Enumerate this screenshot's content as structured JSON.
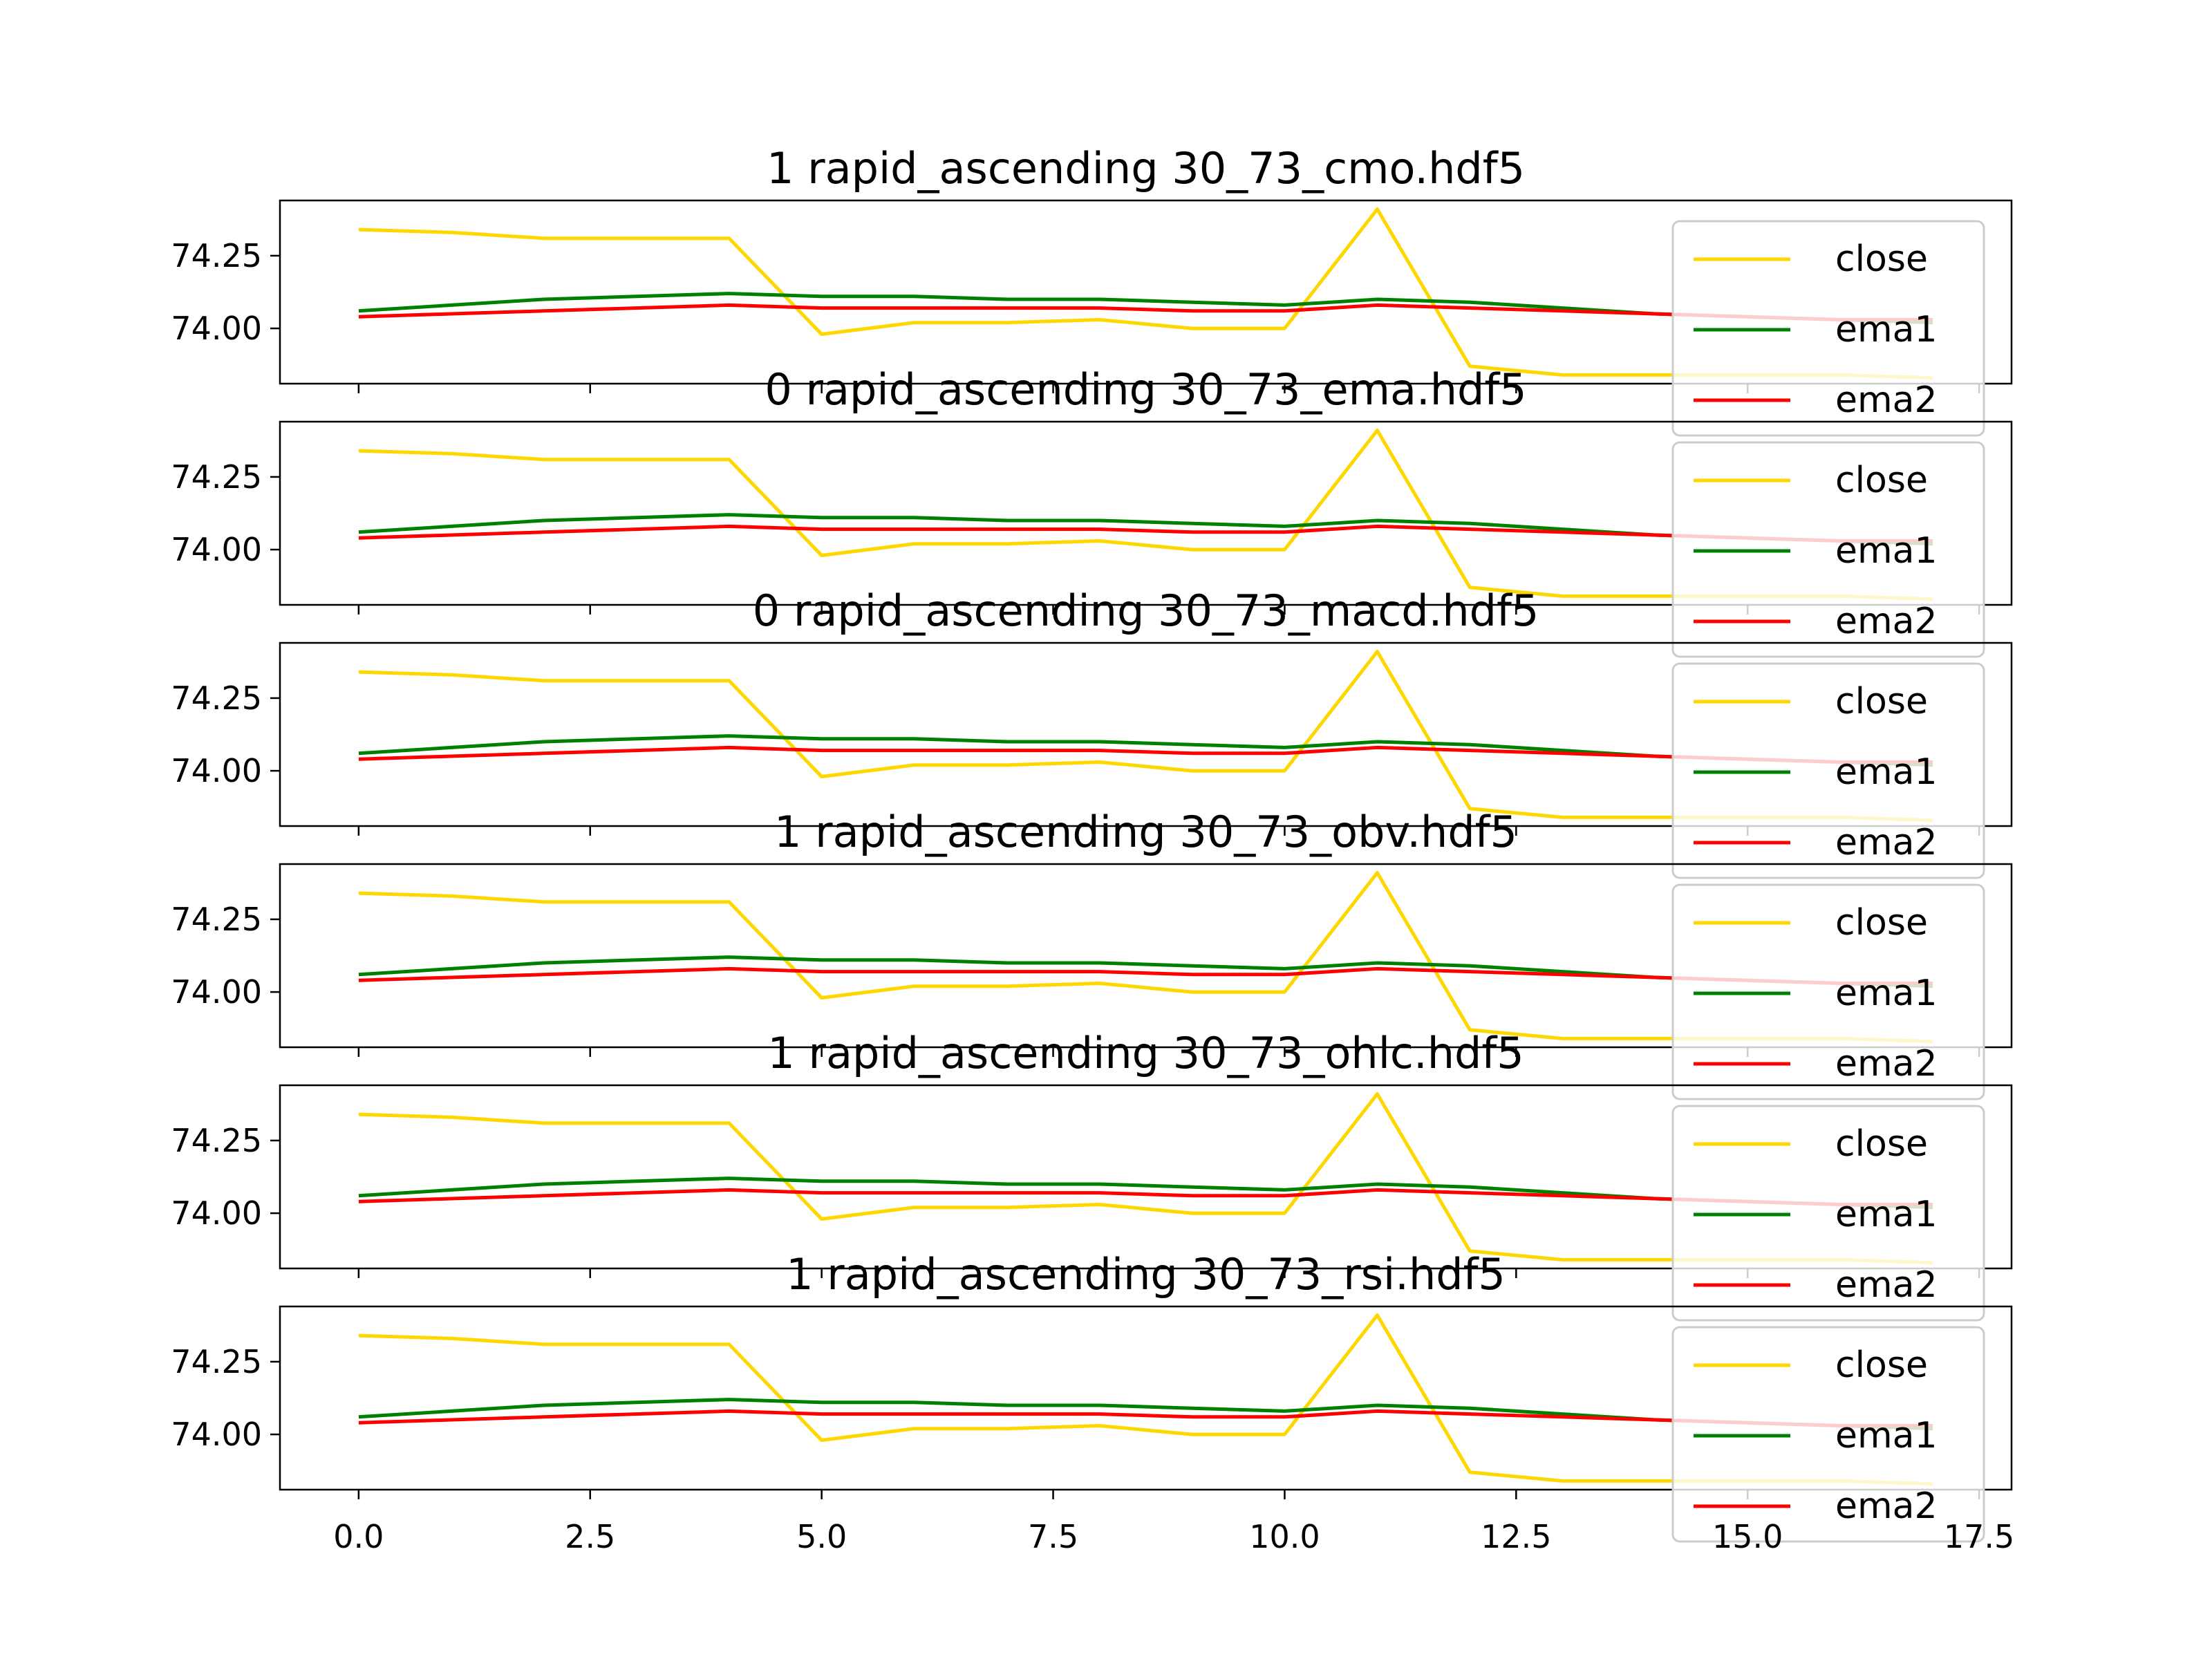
{
  "figure": {
    "background": "#ffffff"
  },
  "series_styles": [
    {
      "name": "close",
      "color": "#ffd700"
    },
    {
      "name": "ema1",
      "color": "#008000"
    },
    {
      "name": "ema2",
      "color": "#ff0000"
    }
  ],
  "chart_data": [
    {
      "type": "line",
      "title": "1 rapid_ascending 30_73_cmo.hdf5",
      "x": [
        0,
        1,
        2,
        3,
        4,
        5,
        6,
        7,
        8,
        9,
        10,
        11,
        12,
        13,
        14,
        15,
        16,
        17
      ],
      "series": [
        {
          "name": "close",
          "values": [
            74.34,
            74.33,
            74.31,
            74.31,
            74.31,
            73.98,
            74.02,
            74.02,
            74.03,
            74.0,
            74.0,
            74.41,
            73.87,
            73.84,
            73.84,
            73.84,
            73.84,
            73.83
          ]
        },
        {
          "name": "ema1",
          "values": [
            74.06,
            74.08,
            74.1,
            74.11,
            74.12,
            74.11,
            74.11,
            74.1,
            74.1,
            74.09,
            74.08,
            74.1,
            74.09,
            74.07,
            74.05,
            74.04,
            74.03,
            74.02
          ]
        },
        {
          "name": "ema2",
          "values": [
            74.04,
            74.05,
            74.06,
            74.07,
            74.08,
            74.07,
            74.07,
            74.07,
            74.07,
            74.06,
            74.06,
            74.08,
            74.07,
            74.06,
            74.05,
            74.04,
            74.03,
            74.03
          ]
        }
      ],
      "yticks": [
        "74.00",
        "74.25"
      ],
      "ylim": [
        73.81,
        74.44
      ],
      "xlim": [
        -0.85,
        17.85
      ],
      "legend": "upper right"
    },
    {
      "type": "line",
      "title": "0 rapid_ascending 30_73_ema.hdf5",
      "x": [
        0,
        1,
        2,
        3,
        4,
        5,
        6,
        7,
        8,
        9,
        10,
        11,
        12,
        13,
        14,
        15,
        16,
        17
      ],
      "series": [
        {
          "name": "close",
          "values": [
            74.34,
            74.33,
            74.31,
            74.31,
            74.31,
            73.98,
            74.02,
            74.02,
            74.03,
            74.0,
            74.0,
            74.41,
            73.87,
            73.84,
            73.84,
            73.84,
            73.84,
            73.83
          ]
        },
        {
          "name": "ema1",
          "values": [
            74.06,
            74.08,
            74.1,
            74.11,
            74.12,
            74.11,
            74.11,
            74.1,
            74.1,
            74.09,
            74.08,
            74.1,
            74.09,
            74.07,
            74.05,
            74.04,
            74.03,
            74.02
          ]
        },
        {
          "name": "ema2",
          "values": [
            74.04,
            74.05,
            74.06,
            74.07,
            74.08,
            74.07,
            74.07,
            74.07,
            74.07,
            74.06,
            74.06,
            74.08,
            74.07,
            74.06,
            74.05,
            74.04,
            74.03,
            74.03
          ]
        }
      ],
      "yticks": [
        "74.00",
        "74.25"
      ],
      "ylim": [
        73.81,
        74.44
      ],
      "xlim": [
        -0.85,
        17.85
      ],
      "legend": "upper right"
    },
    {
      "type": "line",
      "title": "0 rapid_ascending 30_73_macd.hdf5",
      "x": [
        0,
        1,
        2,
        3,
        4,
        5,
        6,
        7,
        8,
        9,
        10,
        11,
        12,
        13,
        14,
        15,
        16,
        17
      ],
      "series": [
        {
          "name": "close",
          "values": [
            74.34,
            74.33,
            74.31,
            74.31,
            74.31,
            73.98,
            74.02,
            74.02,
            74.03,
            74.0,
            74.0,
            74.41,
            73.87,
            73.84,
            73.84,
            73.84,
            73.84,
            73.83
          ]
        },
        {
          "name": "ema1",
          "values": [
            74.06,
            74.08,
            74.1,
            74.11,
            74.12,
            74.11,
            74.11,
            74.1,
            74.1,
            74.09,
            74.08,
            74.1,
            74.09,
            74.07,
            74.05,
            74.04,
            74.03,
            74.02
          ]
        },
        {
          "name": "ema2",
          "values": [
            74.04,
            74.05,
            74.06,
            74.07,
            74.08,
            74.07,
            74.07,
            74.07,
            74.07,
            74.06,
            74.06,
            74.08,
            74.07,
            74.06,
            74.05,
            74.04,
            74.03,
            74.03
          ]
        }
      ],
      "yticks": [
        "74.00",
        "74.25"
      ],
      "ylim": [
        73.81,
        74.44
      ],
      "xlim": [
        -0.85,
        17.85
      ],
      "legend": "upper right"
    },
    {
      "type": "line",
      "title": "1 rapid_ascending 30_73_obv.hdf5",
      "x": [
        0,
        1,
        2,
        3,
        4,
        5,
        6,
        7,
        8,
        9,
        10,
        11,
        12,
        13,
        14,
        15,
        16,
        17
      ],
      "series": [
        {
          "name": "close",
          "values": [
            74.34,
            74.33,
            74.31,
            74.31,
            74.31,
            73.98,
            74.02,
            74.02,
            74.03,
            74.0,
            74.0,
            74.41,
            73.87,
            73.84,
            73.84,
            73.84,
            73.84,
            73.83
          ]
        },
        {
          "name": "ema1",
          "values": [
            74.06,
            74.08,
            74.1,
            74.11,
            74.12,
            74.11,
            74.11,
            74.1,
            74.1,
            74.09,
            74.08,
            74.1,
            74.09,
            74.07,
            74.05,
            74.04,
            74.03,
            74.02
          ]
        },
        {
          "name": "ema2",
          "values": [
            74.04,
            74.05,
            74.06,
            74.07,
            74.08,
            74.07,
            74.07,
            74.07,
            74.07,
            74.06,
            74.06,
            74.08,
            74.07,
            74.06,
            74.05,
            74.04,
            74.03,
            74.03
          ]
        }
      ],
      "yticks": [
        "74.00",
        "74.25"
      ],
      "ylim": [
        73.81,
        74.44
      ],
      "xlim": [
        -0.85,
        17.85
      ],
      "legend": "upper right"
    },
    {
      "type": "line",
      "title": "1 rapid_ascending 30_73_ohlc.hdf5",
      "x": [
        0,
        1,
        2,
        3,
        4,
        5,
        6,
        7,
        8,
        9,
        10,
        11,
        12,
        13,
        14,
        15,
        16,
        17
      ],
      "series": [
        {
          "name": "close",
          "values": [
            74.34,
            74.33,
            74.31,
            74.31,
            74.31,
            73.98,
            74.02,
            74.02,
            74.03,
            74.0,
            74.0,
            74.41,
            73.87,
            73.84,
            73.84,
            73.84,
            73.84,
            73.83
          ]
        },
        {
          "name": "ema1",
          "values": [
            74.06,
            74.08,
            74.1,
            74.11,
            74.12,
            74.11,
            74.11,
            74.1,
            74.1,
            74.09,
            74.08,
            74.1,
            74.09,
            74.07,
            74.05,
            74.04,
            74.03,
            74.02
          ]
        },
        {
          "name": "ema2",
          "values": [
            74.04,
            74.05,
            74.06,
            74.07,
            74.08,
            74.07,
            74.07,
            74.07,
            74.07,
            74.06,
            74.06,
            74.08,
            74.07,
            74.06,
            74.05,
            74.04,
            74.03,
            74.03
          ]
        }
      ],
      "yticks": [
        "74.00",
        "74.25"
      ],
      "ylim": [
        73.81,
        74.44
      ],
      "xlim": [
        -0.85,
        17.85
      ],
      "legend": "upper right"
    },
    {
      "type": "line",
      "title": "1 rapid_ascending 30_73_rsi.hdf5",
      "x": [
        0,
        1,
        2,
        3,
        4,
        5,
        6,
        7,
        8,
        9,
        10,
        11,
        12,
        13,
        14,
        15,
        16,
        17
      ],
      "series": [
        {
          "name": "close",
          "values": [
            74.34,
            74.33,
            74.31,
            74.31,
            74.31,
            73.98,
            74.02,
            74.02,
            74.03,
            74.0,
            74.0,
            74.41,
            73.87,
            73.84,
            73.84,
            73.84,
            73.84,
            73.83
          ]
        },
        {
          "name": "ema1",
          "values": [
            74.06,
            74.08,
            74.1,
            74.11,
            74.12,
            74.11,
            74.11,
            74.1,
            74.1,
            74.09,
            74.08,
            74.1,
            74.09,
            74.07,
            74.05,
            74.04,
            74.03,
            74.02
          ]
        },
        {
          "name": "ema2",
          "values": [
            74.04,
            74.05,
            74.06,
            74.07,
            74.08,
            74.07,
            74.07,
            74.07,
            74.07,
            74.06,
            74.06,
            74.08,
            74.07,
            74.06,
            74.05,
            74.04,
            74.03,
            74.03
          ]
        }
      ],
      "yticks": [
        "74.00",
        "74.25"
      ],
      "ylim": [
        73.81,
        74.44
      ],
      "xlim": [
        -0.85,
        17.85
      ],
      "legend": "upper right",
      "xticks": [
        "0.0",
        "2.5",
        "5.0",
        "7.5",
        "10.0",
        "12.5",
        "15.0",
        "17.5"
      ]
    }
  ]
}
